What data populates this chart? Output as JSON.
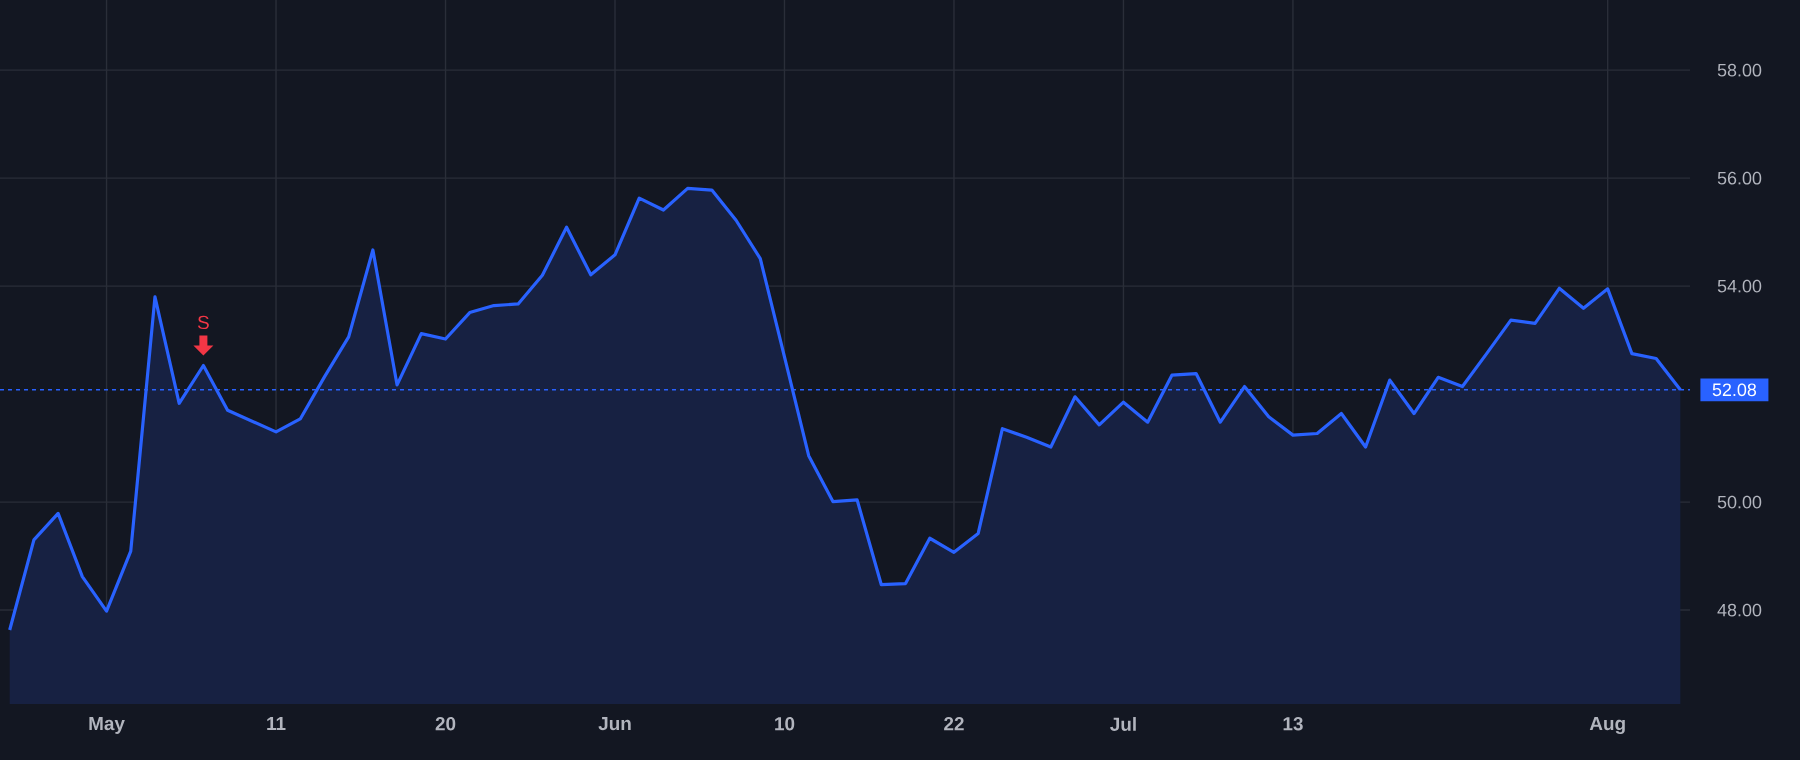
{
  "chart_data": {
    "type": "area",
    "color": "#2962ff",
    "categories": [
      null,
      null,
      null,
      null,
      "May",
      null,
      null,
      null,
      null,
      null,
      null,
      "11",
      null,
      null,
      null,
      null,
      null,
      null,
      "20",
      null,
      null,
      null,
      null,
      null,
      null,
      "Jun",
      null,
      null,
      null,
      null,
      null,
      null,
      "10",
      null,
      null,
      null,
      null,
      null,
      null,
      "22",
      null,
      null,
      null,
      null,
      null,
      null,
      "Jul",
      null,
      null,
      null,
      null,
      null,
      null,
      "13",
      null,
      null,
      null,
      null,
      null,
      null,
      null,
      null,
      null,
      null,
      null,
      null,
      "Aug",
      null,
      null,
      null
    ],
    "values": [
      47.63,
      49.3,
      49.79,
      48.62,
      47.98,
      49.09,
      53.8,
      51.83,
      52.53,
      51.7,
      51.5,
      51.3,
      51.54,
      52.32,
      53.06,
      54.67,
      52.17,
      53.12,
      53.02,
      53.51,
      53.64,
      53.67,
      54.2,
      55.09,
      54.21,
      54.58,
      55.63,
      55.41,
      55.81,
      55.78,
      55.22,
      54.51,
      52.69,
      50.86,
      50.01,
      50.04,
      48.47,
      48.49,
      49.33,
      49.07,
      49.42,
      51.36,
      51.2,
      51.02,
      51.95,
      51.43,
      51.85,
      51.48,
      52.35,
      52.38,
      51.48,
      52.14,
      51.58,
      51.24,
      51.27,
      51.64,
      51.02,
      52.26,
      51.64,
      52.31,
      52.14,
      52.75,
      53.37,
      53.31,
      53.96,
      53.59,
      53.95,
      52.75,
      52.66,
      52.08
    ],
    "ylim": [
      46.26,
      59.3
    ],
    "yticks": [
      {
        "value": 48,
        "label": "48.00"
      },
      {
        "value": 50,
        "label": "50.00"
      },
      {
        "value": 54,
        "label": "54.00"
      },
      {
        "value": 56,
        "label": "56.00"
      },
      {
        "value": 58,
        "label": "58.00"
      }
    ],
    "grid": true,
    "ref_lines": [
      {
        "axis": "y",
        "value": 52.08,
        "label": "52.08",
        "color": "#2962ff",
        "line_style": "dotted"
      }
    ],
    "annotations": [
      {
        "text": "S",
        "y": 52.53
      }
    ]
  }
}
